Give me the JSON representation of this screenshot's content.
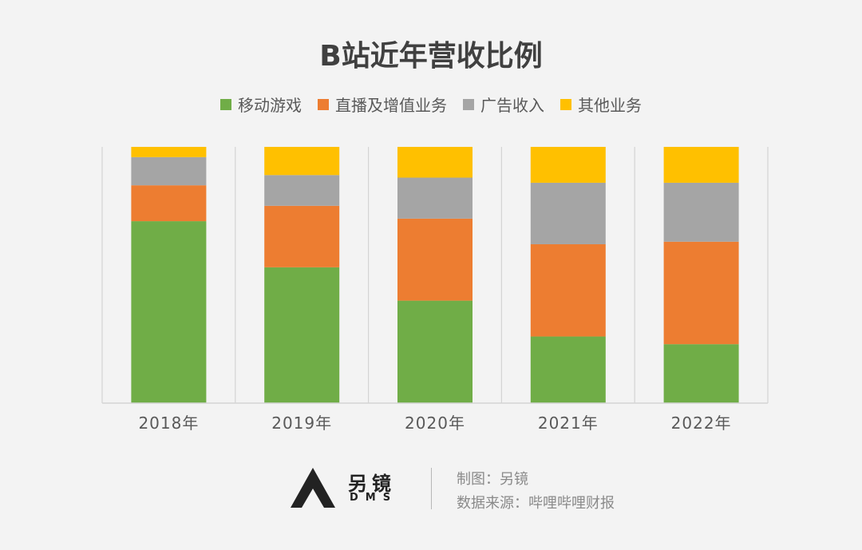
{
  "chart_data": {
    "type": "bar",
    "stacked": true,
    "percent_stacked": true,
    "title": "B站近年营收比例",
    "xlabel": "",
    "ylabel": "",
    "ylim": [
      0,
      100
    ],
    "grid": false,
    "legend_position": "top",
    "categories": [
      "2018年",
      "2019年",
      "2020年",
      "2021年",
      "2022年"
    ],
    "series": [
      {
        "name": "移动游戏",
        "color": "#70ad47",
        "values": [
          71,
          53,
          40,
          26,
          23
        ]
      },
      {
        "name": "直播及增值业务",
        "color": "#ed7d31",
        "values": [
          14,
          24,
          32,
          36,
          40
        ]
      },
      {
        "name": "广告收入",
        "color": "#a5a5a5",
        "values": [
          11,
          12,
          16,
          24,
          23
        ]
      },
      {
        "name": "其他业务",
        "color": "#ffc000",
        "values": [
          4,
          11,
          12,
          14,
          14
        ]
      }
    ]
  },
  "footer": {
    "brand_name": "另镜",
    "brand_sub": "DMS",
    "credit_maker": "制图：另镜",
    "credit_source": "数据来源：哔哩哔哩财报"
  }
}
